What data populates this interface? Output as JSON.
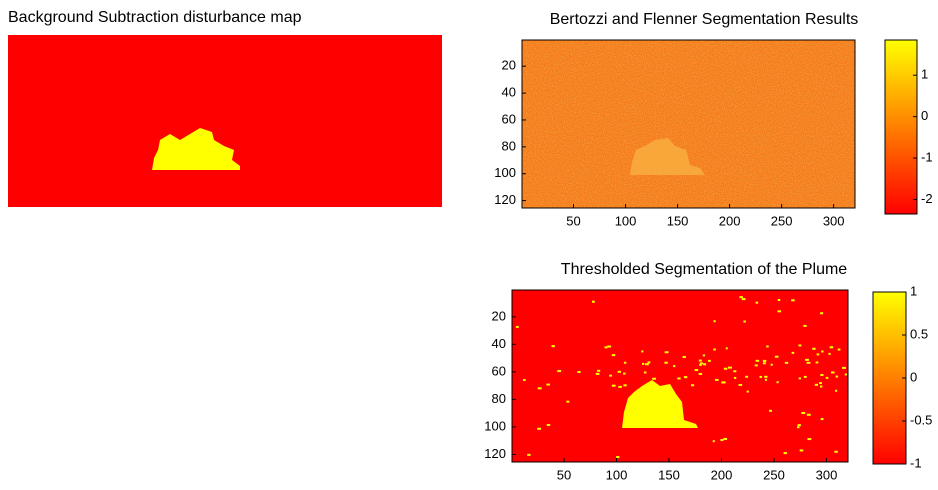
{
  "chart_data": [
    {
      "type": "image",
      "title": "Background Subtraction disturbance map"
    },
    {
      "type": "image",
      "title": "Bertozzi and Flenner Segmentation Results",
      "xlim": [
        0.5,
        320.5
      ],
      "ylim": [
        0.5,
        125.5
      ],
      "reverse_y": true,
      "xticks": [
        50,
        100,
        150,
        200,
        250,
        300
      ],
      "yticks": [
        20,
        40,
        60,
        80,
        100,
        120
      ],
      "colorbar": {
        "colormap": "autumn",
        "clim": [
          -2.35,
          1.85
        ],
        "ticks": [
          -2,
          -1,
          0,
          1
        ]
      }
    },
    {
      "type": "image",
      "title": "Thresholded Segmentation of the Plume",
      "xlim": [
        0.5,
        320.5
      ],
      "ylim": [
        0.5,
        125.5
      ],
      "reverse_y": true,
      "xticks": [
        50,
        100,
        150,
        200,
        250,
        300
      ],
      "yticks": [
        20,
        40,
        60,
        80,
        100,
        120
      ],
      "colorbar": {
        "colormap": "autumn",
        "clim": [
          -1,
          1
        ],
        "ticks": [
          -1,
          -0.5,
          0,
          0.5,
          1
        ]
      }
    }
  ]
}
